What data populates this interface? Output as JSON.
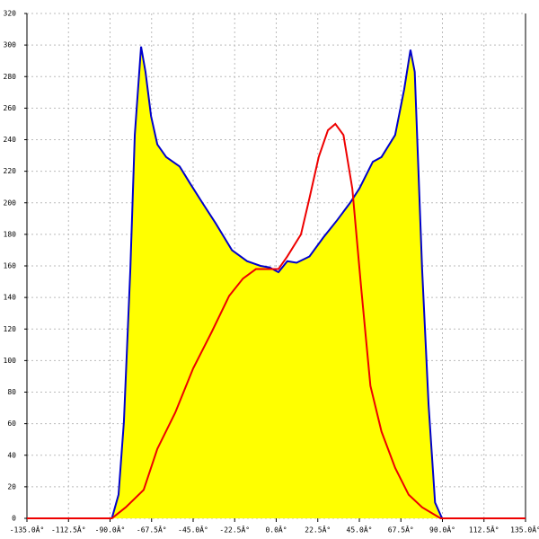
{
  "chart_data": {
    "type": "area",
    "xlim": [
      -135,
      135
    ],
    "ylim": [
      0,
      320
    ],
    "xticks": [
      {
        "value": -135,
        "label": "-135.0Â°"
      },
      {
        "value": -112.5,
        "label": "-112.5Â°"
      },
      {
        "value": -90,
        "label": "-90.0Â°"
      },
      {
        "value": -67.5,
        "label": "-67.5Â°"
      },
      {
        "value": -45,
        "label": "-45.0Â°"
      },
      {
        "value": -22.5,
        "label": "-22.5Â°"
      },
      {
        "value": 0,
        "label": "0.0Â°"
      },
      {
        "value": 22.5,
        "label": "22.5Â°"
      },
      {
        "value": 45,
        "label": "45.0Â°"
      },
      {
        "value": 67.5,
        "label": "67.5Â°"
      },
      {
        "value": 90,
        "label": "90.0Â°"
      },
      {
        "value": 112.5,
        "label": "112.5Â°"
      },
      {
        "value": 135,
        "label": "135.0Â°"
      }
    ],
    "yticks": [
      0,
      20,
      40,
      60,
      80,
      100,
      120,
      140,
      160,
      180,
      200,
      220,
      240,
      260,
      280,
      300,
      320
    ],
    "grid": true,
    "series": [
      {
        "color": "#0000cc",
        "fill": "#ffff00",
        "x": [
          -89,
          -85.4,
          -82.5,
          -79,
          -76.6,
          -73.2,
          -70.8,
          -67.8,
          -64.4,
          -59.6,
          -52.3,
          -46.5,
          -40,
          -32.8,
          -24,
          -15.8,
          -8.5,
          -3.6,
          1.2,
          6,
          11,
          18,
          25.5,
          33,
          40,
          45,
          52.3,
          57,
          64.4,
          69.3,
          72.7,
          75,
          79,
          82.5,
          86,
          89.8
        ],
        "values": [
          0,
          15,
          61,
          158,
          243,
          299,
          283,
          255,
          237,
          229,
          223,
          212,
          200,
          187,
          170,
          163,
          160,
          159,
          156,
          163,
          162,
          166,
          178,
          189,
          200,
          209,
          226,
          229,
          243,
          272,
          297,
          283,
          158,
          72,
          10,
          0
        ]
      },
      {
        "color": "#ee0000",
        "x": [
          -135,
          -89,
          -81.5,
          -71.8,
          -64.4,
          -54.7,
          -45,
          -35,
          -25.5,
          -18,
          -11,
          -3.6,
          1.2,
          6,
          13.4,
          18,
          23,
          28,
          32,
          36.4,
          41.2,
          46,
          51,
          57,
          64.4,
          71.7,
          79,
          89,
          135
        ],
        "values": [
          0,
          0,
          7,
          18,
          44,
          67,
          95,
          118,
          141,
          152,
          158,
          158,
          158,
          166,
          180,
          203,
          229,
          246,
          250,
          243,
          209,
          146,
          84,
          55,
          32,
          15,
          7,
          0,
          0
        ]
      }
    ]
  }
}
